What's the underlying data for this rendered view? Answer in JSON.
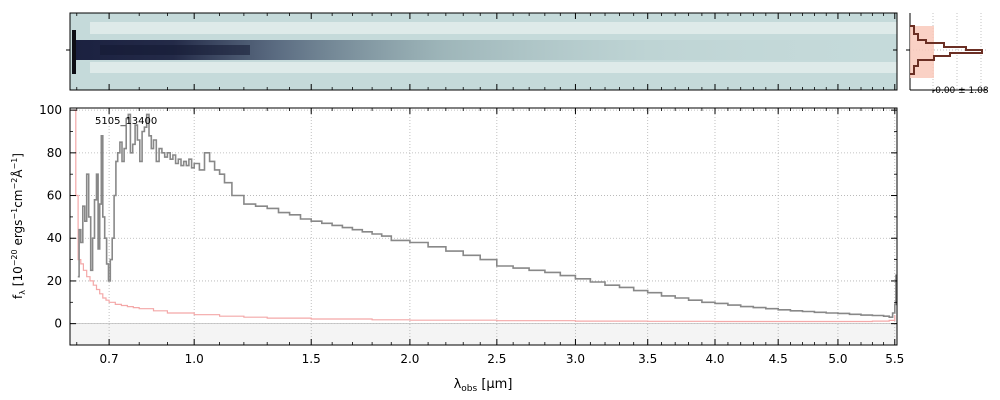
{
  "chart_data": [
    {
      "type": "heatmap",
      "panel": "2d-spectrum",
      "description_colormap": "bone-teal",
      "background_color": "#c5dada",
      "trace_color": "#1b2140"
    },
    {
      "type": "line",
      "panel": "1d-spectrum",
      "label": "5105_13400",
      "xlabel_main": "λ",
      "xlabel_sub": "obs",
      "xlabel_unit": " [μm]",
      "ylabel": "f_λ [10^-20 ergs^-1 cm^-2 Å^-1]",
      "ylabel_parts": {
        "base": "f",
        "sub": "λ",
        "open": " [10",
        "exp1": "−20",
        "mid1": " ergs",
        "exp2": "−1",
        "mid2": "cm",
        "exp3": "−2",
        "mid3": "Å",
        "exp4": "−1",
        "close": "]"
      },
      "xlim": [
        0.58,
        5.52
      ],
      "xscale": "sqrt",
      "ylim": [
        -10,
        101
      ],
      "grid": true,
      "xticks": [
        0.7,
        1.0,
        1.5,
        2.0,
        2.5,
        3.0,
        3.5,
        4.0,
        4.5,
        5.0,
        5.5
      ],
      "xtick_labels": [
        "0.7",
        "1.0",
        "1.5",
        "2.0",
        "2.5",
        "3.0",
        "3.5",
        "4.0",
        "4.5",
        "5.0",
        "5.5"
      ],
      "yticks": [
        0,
        20,
        40,
        60,
        80,
        100
      ],
      "ytick_labels": [
        "0",
        "20",
        "40",
        "60",
        "80",
        "100"
      ],
      "series": [
        {
          "role": "flux",
          "color": "#888888",
          "points": [
            [
              0.603,
              22
            ],
            [
              0.607,
              44
            ],
            [
              0.612,
              38
            ],
            [
              0.618,
              55
            ],
            [
              0.624,
              48
            ],
            [
              0.63,
              70
            ],
            [
              0.636,
              50
            ],
            [
              0.642,
              25
            ],
            [
              0.648,
              40
            ],
            [
              0.654,
              58
            ],
            [
              0.66,
              70
            ],
            [
              0.665,
              35
            ],
            [
              0.67,
              56
            ],
            [
              0.675,
              88
            ],
            [
              0.68,
              50
            ],
            [
              0.686,
              40
            ],
            [
              0.692,
              28
            ],
            [
              0.698,
              20
            ],
            [
              0.704,
              30
            ],
            [
              0.71,
              40
            ],
            [
              0.716,
              60
            ],
            [
              0.722,
              76
            ],
            [
              0.728,
              80
            ],
            [
              0.735,
              85
            ],
            [
              0.742,
              76
            ],
            [
              0.749,
              82
            ],
            [
              0.756,
              96
            ],
            [
              0.763,
              98
            ],
            [
              0.77,
              80
            ],
            [
              0.778,
              84
            ],
            [
              0.786,
              93
            ],
            [
              0.794,
              86
            ],
            [
              0.802,
              76
            ],
            [
              0.81,
              90
            ],
            [
              0.818,
              92
            ],
            [
              0.826,
              98
            ],
            [
              0.834,
              88
            ],
            [
              0.842,
              82
            ],
            [
              0.85,
              86
            ],
            [
              0.86,
              76
            ],
            [
              0.87,
              82
            ],
            [
              0.88,
              80
            ],
            [
              0.89,
              78
            ],
            [
              0.9,
              80
            ],
            [
              0.91,
              77
            ],
            [
              0.92,
              79
            ],
            [
              0.93,
              75
            ],
            [
              0.94,
              77
            ],
            [
              0.95,
              74
            ],
            [
              0.96,
              76
            ],
            [
              0.97,
              74
            ],
            [
              0.98,
              77
            ],
            [
              0.99,
              73
            ],
            [
              1.0,
              75
            ],
            [
              1.02,
              72
            ],
            [
              1.04,
              80
            ],
            [
              1.06,
              76
            ],
            [
              1.08,
              72
            ],
            [
              1.1,
              70
            ],
            [
              1.12,
              66
            ],
            [
              1.15,
              60
            ],
            [
              1.2,
              56
            ],
            [
              1.25,
              55
            ],
            [
              1.3,
              54
            ],
            [
              1.35,
              52
            ],
            [
              1.4,
              51
            ],
            [
              1.45,
              49
            ],
            [
              1.5,
              48
            ],
            [
              1.55,
              47
            ],
            [
              1.6,
              46
            ],
            [
              1.65,
              45
            ],
            [
              1.7,
              44
            ],
            [
              1.75,
              43
            ],
            [
              1.8,
              42
            ],
            [
              1.85,
              41
            ],
            [
              1.9,
              39
            ],
            [
              2.0,
              38
            ],
            [
              2.1,
              36
            ],
            [
              2.2,
              34
            ],
            [
              2.3,
              32
            ],
            [
              2.4,
              30
            ],
            [
              2.5,
              27
            ],
            [
              2.6,
              26
            ],
            [
              2.7,
              25
            ],
            [
              2.8,
              24
            ],
            [
              2.9,
              22.5
            ],
            [
              3.0,
              21
            ],
            [
              3.1,
              19.5
            ],
            [
              3.2,
              18
            ],
            [
              3.3,
              17
            ],
            [
              3.4,
              15.5
            ],
            [
              3.5,
              14.5
            ],
            [
              3.6,
              13
            ],
            [
              3.7,
              12
            ],
            [
              3.8,
              11
            ],
            [
              3.9,
              10
            ],
            [
              4.0,
              9.5
            ],
            [
              4.1,
              8.7
            ],
            [
              4.2,
              8
            ],
            [
              4.3,
              7.5
            ],
            [
              4.4,
              7
            ],
            [
              4.5,
              6.5
            ],
            [
              4.6,
              6
            ],
            [
              4.7,
              5.7
            ],
            [
              4.8,
              5.3
            ],
            [
              4.9,
              5
            ],
            [
              5.0,
              4.8
            ],
            [
              5.1,
              4.4
            ],
            [
              5.2,
              4
            ],
            [
              5.3,
              3.8
            ],
            [
              5.4,
              3.5
            ],
            [
              5.45,
              3
            ],
            [
              5.48,
              5
            ],
            [
              5.5,
              9
            ],
            [
              5.51,
              23
            ]
          ]
        },
        {
          "role": "error",
          "color": "#f4a8a8",
          "points": [
            [
              0.59,
              100
            ],
            [
              0.597,
              60
            ],
            [
              0.604,
              30
            ],
            [
              0.612,
              28
            ],
            [
              0.62,
              25
            ],
            [
              0.63,
              22
            ],
            [
              0.64,
              20
            ],
            [
              0.65,
              18
            ],
            [
              0.66,
              16
            ],
            [
              0.67,
              14
            ],
            [
              0.68,
              12
            ],
            [
              0.69,
              11
            ],
            [
              0.7,
              10
            ],
            [
              0.71,
              10
            ],
            [
              0.72,
              9
            ],
            [
              0.74,
              8.5
            ],
            [
              0.76,
              8
            ],
            [
              0.78,
              7.5
            ],
            [
              0.8,
              7
            ],
            [
              0.85,
              6
            ],
            [
              0.9,
              5
            ],
            [
              1.0,
              4.2
            ],
            [
              1.1,
              3.5
            ],
            [
              1.2,
              3
            ],
            [
              1.3,
              2.6
            ],
            [
              1.5,
              2.2
            ],
            [
              1.8,
              1.8
            ],
            [
              2.0,
              1.6
            ],
            [
              2.5,
              1.4
            ],
            [
              3.0,
              1.2
            ],
            [
              3.5,
              1.1
            ],
            [
              4.0,
              1.0
            ],
            [
              4.5,
              1.0
            ],
            [
              5.0,
              1.0
            ],
            [
              5.3,
              1.2
            ],
            [
              5.45,
              1.5
            ],
            [
              5.5,
              4
            ]
          ]
        }
      ]
    },
    {
      "type": "histogram",
      "panel": "cross-dispersion-profile",
      "annotation": "-0.00 ± 1.08",
      "fill_color": "#f9c9bb",
      "line_color": "#6b2f24"
    }
  ]
}
